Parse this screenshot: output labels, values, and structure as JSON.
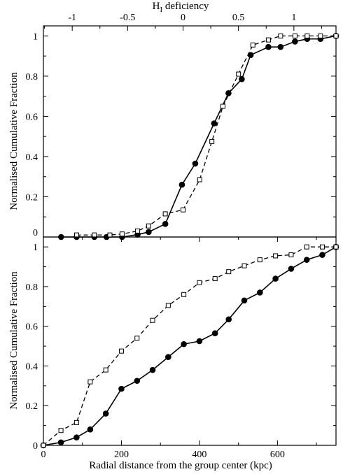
{
  "chart_data": [
    {
      "type": "line",
      "panel": "top",
      "xlabel": "",
      "ylabel": "Normalised Cumulative Fraction",
      "top_xlabel_main": "H",
      "top_xlabel_sub": "I",
      "top_xlabel_rest": " deficiency",
      "xlim": [
        -1.26,
        1.38
      ],
      "ylim": [
        0,
        1.05
      ],
      "xticks": [
        -1,
        -0.5,
        0,
        0.5,
        1
      ],
      "xtick_labels": [
        "-1",
        "-0.5",
        "0",
        "0.5",
        "1"
      ],
      "yticks": [
        0,
        0.2,
        0.4,
        0.6,
        0.8,
        1
      ],
      "ytick_labels": [
        "0",
        "0.2",
        "0.4",
        "0.6",
        "0.8",
        "1"
      ],
      "series": [
        {
          "style": "solid-filled-circle",
          "x": [
            -1.1,
            -0.96,
            -0.8,
            -0.69,
            -0.55,
            -0.41,
            -0.31,
            -0.16,
            -0.01,
            0.11,
            0.28,
            0.41,
            0.53,
            0.61,
            0.77,
            0.88,
            1.01,
            1.12,
            1.24,
            1.38
          ],
          "y": [
            0,
            0,
            0,
            0,
            0,
            0.012,
            0.025,
            0.065,
            0.26,
            0.365,
            0.565,
            0.715,
            0.785,
            0.905,
            0.945,
            0.945,
            0.972,
            0.985,
            0.985,
            1.0
          ]
        },
        {
          "style": "dashed-open-square",
          "x": [
            -0.96,
            -0.8,
            -0.66,
            -0.55,
            -0.41,
            -0.31,
            -0.16,
            0.0,
            0.15,
            0.26,
            0.36,
            0.5,
            0.63,
            0.77,
            0.88,
            1.01,
            1.12,
            1.24,
            1.38
          ],
          "y": [
            0.01,
            0.01,
            0.01,
            0.015,
            0.03,
            0.055,
            0.115,
            0.135,
            0.285,
            0.475,
            0.65,
            0.81,
            0.955,
            0.98,
            1.0,
            1.0,
            1.0,
            1.0,
            1.0
          ]
        }
      ]
    },
    {
      "type": "line",
      "panel": "bottom",
      "xlabel": "Radial distance from the group center (kpc)",
      "ylabel": "Normalised Cumulative Fraction",
      "xlim": [
        0,
        750
      ],
      "ylim": [
        0,
        1.05
      ],
      "xticks": [
        0,
        200,
        400,
        600
      ],
      "xtick_labels": [
        "0",
        "200",
        "400",
        "600"
      ],
      "yticks": [
        0,
        0.2,
        0.4,
        0.6,
        0.8,
        1
      ],
      "ytick_labels": [
        "0",
        "0.2",
        "0.4",
        "0.6",
        "0.8",
        "1"
      ],
      "series": [
        {
          "style": "solid-filled-circle",
          "x": [
            0,
            45,
            85,
            120,
            160,
            200,
            240,
            280,
            320,
            360,
            400,
            440,
            475,
            515,
            555,
            595,
            635,
            675,
            715,
            750
          ],
          "y": [
            0,
            0.015,
            0.04,
            0.08,
            0.16,
            0.285,
            0.325,
            0.38,
            0.445,
            0.51,
            0.525,
            0.565,
            0.635,
            0.73,
            0.77,
            0.84,
            0.89,
            0.935,
            0.96,
            1.0
          ]
        },
        {
          "style": "dashed-open-square",
          "x": [
            0,
            45,
            85,
            120,
            160,
            200,
            240,
            280,
            320,
            360,
            400,
            440,
            475,
            515,
            555,
            595,
            635,
            675,
            715,
            750
          ],
          "y": [
            0,
            0.075,
            0.115,
            0.32,
            0.38,
            0.475,
            0.54,
            0.63,
            0.705,
            0.76,
            0.82,
            0.84,
            0.875,
            0.905,
            0.935,
            0.955,
            0.96,
            1.0,
            1.0,
            1.0
          ]
        }
      ]
    }
  ]
}
